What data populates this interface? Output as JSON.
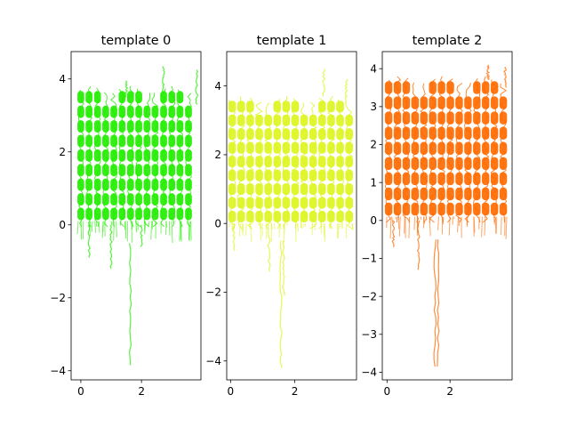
{
  "chart_data": [
    {
      "type": "line",
      "title": "template 0",
      "color": "#22ee00",
      "xlim": [
        -0.32,
        3.96
      ],
      "ylim": [
        -4.25,
        4.75
      ],
      "xticks": [
        0,
        2
      ],
      "yticks": [
        -4,
        -2,
        0,
        2,
        4
      ],
      "xtick_labels": [
        "0",
        "2"
      ],
      "ytick_labels": [
        "−4",
        "−2",
        "0",
        "2",
        "4"
      ],
      "grid_x": [
        0,
        0.27,
        0.55,
        0.82,
        1.09,
        1.36,
        1.64,
        1.91,
        2.18,
        2.45,
        2.73,
        3.0,
        3.27,
        3.55
      ],
      "grid_y": [
        0.3,
        0.7,
        1.1,
        1.5,
        1.9,
        2.3,
        2.7,
        3.1,
        3.5
      ],
      "spikes": [
        {
          "x": 1.64,
          "y0": -0.5,
          "y1": -3.85
        },
        {
          "x": 0.27,
          "y0": 0,
          "y1": -0.9
        },
        {
          "x": 1.0,
          "y0": 0,
          "y1": -1.2
        },
        {
          "x": 2.0,
          "y0": 0,
          "y1": -0.6
        },
        {
          "x": 2.73,
          "y0": 3.6,
          "y1": 4.35
        },
        {
          "x": 3.82,
          "y0": 3.3,
          "y1": 4.25
        },
        {
          "x": 1.5,
          "y0": 3.5,
          "y1": 3.95
        }
      ]
    },
    {
      "type": "line",
      "title": "template 1",
      "color": "#ddf522",
      "xlim": [
        -0.12,
        3.92
      ],
      "ylim": [
        -4.55,
        5.0
      ],
      "xticks": [
        0,
        2
      ],
      "yticks": [
        -4,
        -2,
        0,
        2,
        4
      ],
      "xtick_labels": [
        "0",
        "2"
      ],
      "ytick_labels": [
        "−4",
        "−2",
        "0",
        "2",
        "4"
      ],
      "grid_x": [
        0.05,
        0.33,
        0.61,
        0.89,
        1.17,
        1.45,
        1.73,
        2.01,
        2.29,
        2.57,
        2.85,
        3.13,
        3.41,
        3.69
      ],
      "grid_y": [
        0.2,
        0.6,
        1.0,
        1.4,
        1.8,
        2.2,
        2.6,
        3.0,
        3.4
      ],
      "spikes": [
        {
          "x": 1.57,
          "y0": -0.5,
          "y1": -4.2
        },
        {
          "x": 1.65,
          "y0": -0.5,
          "y1": -2.1
        },
        {
          "x": 1.2,
          "y0": 0,
          "y1": -1.4
        },
        {
          "x": 0.1,
          "y0": 0,
          "y1": -0.8
        },
        {
          "x": 2.9,
          "y0": 3.7,
          "y1": 4.5
        },
        {
          "x": 3.6,
          "y0": 3.5,
          "y1": 4.2
        }
      ]
    },
    {
      "type": "line",
      "title": "template 2",
      "color": "#ff6a00",
      "xlim": [
        -0.15,
        3.97
      ],
      "ylim": [
        -4.2,
        4.45
      ],
      "xticks": [
        0,
        2
      ],
      "yticks": [
        -4,
        -3,
        -2,
        -1,
        0,
        1,
        2,
        3,
        4
      ],
      "xtick_labels": [
        "0",
        "2"
      ],
      "ytick_labels": [
        "−4",
        "−3",
        "−2",
        "−1",
        "0",
        "1",
        "2",
        "3",
        "4"
      ],
      "grid_x": [
        0.05,
        0.33,
        0.61,
        0.89,
        1.17,
        1.45,
        1.73,
        2.01,
        2.29,
        2.57,
        2.85,
        3.13,
        3.41,
        3.69
      ],
      "grid_y": [
        0.3,
        0.7,
        1.1,
        1.5,
        1.9,
        2.3,
        2.7,
        3.1,
        3.5
      ],
      "spikes": [
        {
          "x": 1.52,
          "y0": -0.5,
          "y1": -3.85
        },
        {
          "x": 1.62,
          "y0": -0.5,
          "y1": -3.85
        },
        {
          "x": 1.0,
          "y0": 0,
          "y1": -1.3
        },
        {
          "x": 0.2,
          "y0": 0,
          "y1": -0.7
        },
        {
          "x": 3.2,
          "y0": 3.7,
          "y1": 4.1
        },
        {
          "x": 3.75,
          "y0": 3.5,
          "y1": 4.05
        }
      ]
    }
  ]
}
